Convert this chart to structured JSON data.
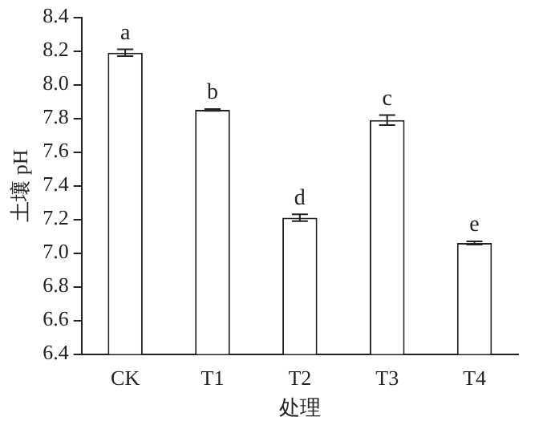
{
  "chart_data": {
    "type": "bar",
    "xlabel": "处理",
    "ylabel": "土壤 pH",
    "categories": [
      "CK",
      "T1",
      "T2",
      "T3",
      "T4"
    ],
    "values": [
      8.19,
      7.85,
      7.21,
      7.79,
      7.06
    ],
    "errors": [
      0.02,
      0.005,
      0.02,
      0.03,
      0.01
    ],
    "color": "#ffffff",
    "ylim": [
      6.4,
      8.4
    ],
    "yticks": [
      6.4,
      6.6,
      6.8,
      {
        "value": 7,
        "label": "7.0"
      },
      7.2,
      7.4,
      7.6,
      7.8,
      {
        "value": 8,
        "label": "8.0"
      },
      8.2,
      8.4
    ],
    "annotations": [
      {
        "text": "a",
        "x": "CK",
        "y": 8.19
      },
      {
        "text": "b",
        "x": "T1",
        "y": 7.85
      },
      {
        "text": "d",
        "x": "T2",
        "y": 7.21
      },
      {
        "text": "c",
        "x": "T3",
        "y": 7.79
      },
      {
        "text": "e",
        "x": "T4",
        "y": 7.06
      }
    ],
    "grid": false,
    "legend": false
  }
}
